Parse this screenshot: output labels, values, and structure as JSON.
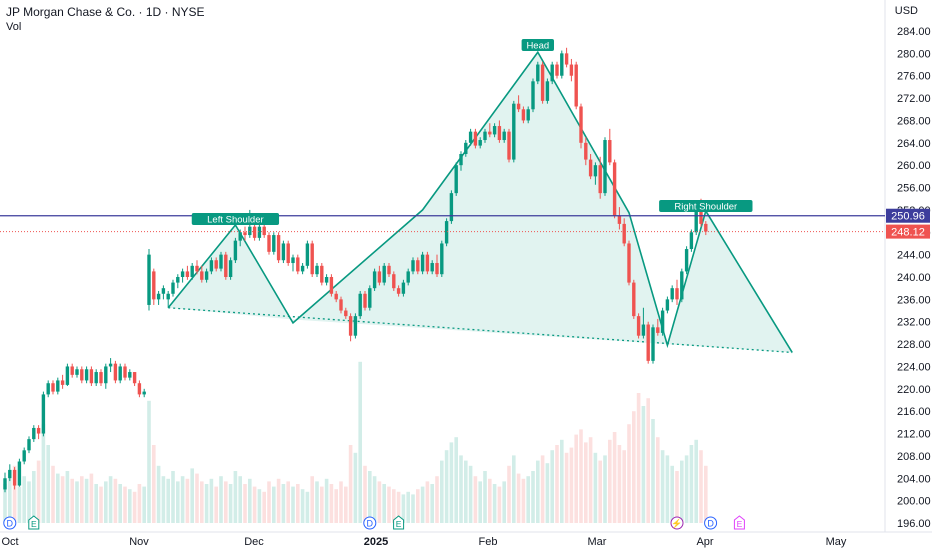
{
  "header": {
    "title": "JP Morgan Chase & Co. · 1D · NYSE",
    "volume_label": "Vol",
    "currency": "USD"
  },
  "colors": {
    "up": "#089981",
    "down": "#ef5350",
    "pattern": "#089981",
    "pattern_fill": "rgba(8,153,129,0.12)",
    "resistance": "#3d3d9c",
    "last_price_line": "#ef5350"
  },
  "chart_data": {
    "type": "candlestick",
    "title": "JP Morgan Chase & Co. · 1D · NYSE",
    "ylim": [
      194,
      288
    ],
    "y_ticks": [
      196,
      200,
      204,
      208,
      212,
      216,
      220,
      224,
      228,
      232,
      236,
      240,
      244,
      248,
      252,
      256,
      260,
      264,
      268,
      272,
      276,
      280,
      284
    ],
    "x_ticks": [
      "Oct",
      "Nov",
      "Dec",
      "2025",
      "Feb",
      "Mar",
      "Apr",
      "May"
    ],
    "price_labels": {
      "resistance": "250.96",
      "last": "248.12"
    },
    "levels": {
      "resistance": 250.96,
      "last": 248.12
    },
    "pattern": {
      "labels": {
        "left_shoulder": "Left Shoulder",
        "head": "Head",
        "right_shoulder": "Right Shoulder"
      },
      "points": [
        [
          34,
          234.5
        ],
        [
          48,
          249.3
        ],
        [
          60,
          231.8
        ],
        [
          87,
          252
        ],
        [
          111,
          280.2
        ],
        [
          130,
          251.5
        ],
        [
          138,
          227.8
        ],
        [
          146,
          251.8
        ],
        [
          164,
          226.5
        ],
        [
          60,
          232.4
        ],
        [
          34,
          234.5
        ]
      ],
      "neckline": [
        [
          34,
          234.5
        ],
        [
          164,
          226.5
        ]
      ]
    },
    "event_markers": [
      {
        "i": 1,
        "label": "D",
        "type": "dividend"
      },
      {
        "i": 6,
        "label": "E",
        "type": "earnings"
      },
      {
        "i": 76,
        "label": "D",
        "type": "dividend"
      },
      {
        "i": 82,
        "label": "E",
        "type": "earnings"
      },
      {
        "i": 140,
        "label": "⚡",
        "type": "split"
      },
      {
        "i": 147,
        "label": "D",
        "type": "dividend"
      },
      {
        "i": 153,
        "label": "E",
        "type": "earnings-upcoming"
      }
    ],
    "candles": [
      [
        202.0,
        205.0,
        201.5,
        204.0,
        0.15
      ],
      [
        204.0,
        206.5,
        203.5,
        205.5,
        0.17
      ],
      [
        205.5,
        206.0,
        202.0,
        202.7,
        0.22
      ],
      [
        202.7,
        207.5,
        202.5,
        207.0,
        0.14
      ],
      [
        207.0,
        209.5,
        206.5,
        209.0,
        0.18
      ],
      [
        209.0,
        211.5,
        208.5,
        211.0,
        0.16
      ],
      [
        211.0,
        213.5,
        210.5,
        213.0,
        0.2
      ],
      [
        213.0,
        213.5,
        211.0,
        212.0,
        0.24
      ],
      [
        212.0,
        219.5,
        211.5,
        219.0,
        0.38
      ],
      [
        219.0,
        221.5,
        218.5,
        221.0,
        0.3
      ],
      [
        221.0,
        221.5,
        219.0,
        219.5,
        0.22
      ],
      [
        219.5,
        222.0,
        219.0,
        221.5,
        0.19
      ],
      [
        221.5,
        222.5,
        220.0,
        220.7,
        0.18
      ],
      [
        220.7,
        224.5,
        220.5,
        224.0,
        0.2
      ],
      [
        224.0,
        224.5,
        222.0,
        222.5,
        0.17
      ],
      [
        222.5,
        224.0,
        222.0,
        223.5,
        0.16
      ],
      [
        223.5,
        224.0,
        221.0,
        221.5,
        0.18
      ],
      [
        221.5,
        224.0,
        221.0,
        223.5,
        0.17
      ],
      [
        223.5,
        224.0,
        220.5,
        221.0,
        0.19
      ],
      [
        221.0,
        223.5,
        220.5,
        223.0,
        0.15
      ],
      [
        223.0,
        223.5,
        220.5,
        221.0,
        0.14
      ],
      [
        221.0,
        224.5,
        220.0,
        224.0,
        0.16
      ],
      [
        224.0,
        225.5,
        223.0,
        224.5,
        0.18
      ],
      [
        224.5,
        225.0,
        221.0,
        221.5,
        0.17
      ],
      [
        221.5,
        224.5,
        221.0,
        224.0,
        0.15
      ],
      [
        224.0,
        224.5,
        221.5,
        222.0,
        0.14
      ],
      [
        222.0,
        223.5,
        221.5,
        223.0,
        0.13
      ],
      [
        223.0,
        223.0,
        220.5,
        221.0,
        0.12
      ],
      [
        221.0,
        221.5,
        218.5,
        219.0,
        0.15
      ],
      [
        219.0,
        220.0,
        218.5,
        219.5,
        0.14
      ],
      [
        235.0,
        245.0,
        234.0,
        244.0,
        0.47
      ],
      [
        241.0,
        241.5,
        235.0,
        236.0,
        0.3
      ],
      [
        236.0,
        237.5,
        235.0,
        237.0,
        0.22
      ],
      [
        237.0,
        238.5,
        236.0,
        238.0,
        0.18
      ],
      [
        236.0,
        237.5,
        234.5,
        237.0,
        0.17
      ],
      [
        237.0,
        239.5,
        236.5,
        239.0,
        0.2
      ],
      [
        239.0,
        240.5,
        238.0,
        240.0,
        0.16
      ],
      [
        240.0,
        241.5,
        239.0,
        241.0,
        0.18
      ],
      [
        241.0,
        242.0,
        239.5,
        240.0,
        0.17
      ],
      [
        240.0,
        242.5,
        239.5,
        242.0,
        0.21
      ],
      [
        242.0,
        243.0,
        240.5,
        241.0,
        0.19
      ],
      [
        241.0,
        242.0,
        239.0,
        239.5,
        0.16
      ],
      [
        239.5,
        241.5,
        239.0,
        241.0,
        0.15
      ],
      [
        241.0,
        243.5,
        240.5,
        243.0,
        0.17
      ],
      [
        243.0,
        243.5,
        241.0,
        241.5,
        0.14
      ],
      [
        241.5,
        244.5,
        241.0,
        244.0,
        0.18
      ],
      [
        244.0,
        244.5,
        239.5,
        240.0,
        0.16
      ],
      [
        240.0,
        243.5,
        239.5,
        243.0,
        0.15
      ],
      [
        243.0,
        247.0,
        242.5,
        246.5,
        0.2
      ],
      [
        246.5,
        248.5,
        245.5,
        248.0,
        0.18
      ],
      [
        248.0,
        249.0,
        246.5,
        247.5,
        0.15
      ],
      [
        247.5,
        252.0,
        247.0,
        249.0,
        0.17
      ],
      [
        249.0,
        249.5,
        246.5,
        247.0,
        0.14
      ],
      [
        247.0,
        249.5,
        246.5,
        249.0,
        0.13
      ],
      [
        249.0,
        249.5,
        247.0,
        247.5,
        0.12
      ],
      [
        247.5,
        248.0,
        244.0,
        244.5,
        0.16
      ],
      [
        244.5,
        248.0,
        244.0,
        247.5,
        0.14
      ],
      [
        247.5,
        248.0,
        242.5,
        243.0,
        0.17
      ],
      [
        243.0,
        246.5,
        242.5,
        246.0,
        0.15
      ],
      [
        246.0,
        246.5,
        242.0,
        242.5,
        0.16
      ],
      [
        242.5,
        244.0,
        241.0,
        243.5,
        0.14
      ],
      [
        243.5,
        244.0,
        240.5,
        241.0,
        0.15
      ],
      [
        241.0,
        242.5,
        240.5,
        242.0,
        0.13
      ],
      [
        242.0,
        246.5,
        241.5,
        246.0,
        0.12
      ],
      [
        246.0,
        246.5,
        240.0,
        240.5,
        0.18
      ],
      [
        240.5,
        242.5,
        240.0,
        242.0,
        0.16
      ],
      [
        242.0,
        242.5,
        238.5,
        239.0,
        0.14
      ],
      [
        239.0,
        240.5,
        238.5,
        240.0,
        0.17
      ],
      [
        240.0,
        240.5,
        236.5,
        237.0,
        0.15
      ],
      [
        237.0,
        237.5,
        235.5,
        236.0,
        0.13
      ],
      [
        236.0,
        236.5,
        233.5,
        234.0,
        0.16
      ],
      [
        234.0,
        234.5,
        232.5,
        233.0,
        0.14
      ],
      [
        233.0,
        233.5,
        228.5,
        229.5,
        0.3
      ],
      [
        229.5,
        233.5,
        229.0,
        233.0,
        0.27
      ],
      [
        233.0,
        237.5,
        232.5,
        237.0,
        0.62
      ],
      [
        237.0,
        237.5,
        234.0,
        234.5,
        0.22
      ],
      [
        234.5,
        238.5,
        234.0,
        238.0,
        0.2
      ],
      [
        238.0,
        241.5,
        237.5,
        241.0,
        0.18
      ],
      [
        241.0,
        242.0,
        238.5,
        239.0,
        0.16
      ],
      [
        239.0,
        242.5,
        238.5,
        242.0,
        0.15
      ],
      [
        242.0,
        242.5,
        240.0,
        240.5,
        0.14
      ],
      [
        240.5,
        241.0,
        237.5,
        238.0,
        0.13
      ],
      [
        238.0,
        238.5,
        236.5,
        237.0,
        0.12
      ],
      [
        237.0,
        239.5,
        236.5,
        239.0,
        0.11
      ],
      [
        239.0,
        241.5,
        238.5,
        241.0,
        0.12
      ],
      [
        241.0,
        243.5,
        240.5,
        243.0,
        0.11
      ],
      [
        243.0,
        243.5,
        240.5,
        241.0,
        0.13
      ],
      [
        241.0,
        244.5,
        240.5,
        244.0,
        0.14
      ],
      [
        244.0,
        244.5,
        240.5,
        241.0,
        0.16
      ],
      [
        241.0,
        243.0,
        240.5,
        242.5,
        0.15
      ],
      [
        242.5,
        244.0,
        240.0,
        240.5,
        0.18
      ],
      [
        240.5,
        246.5,
        240.0,
        246.0,
        0.24
      ],
      [
        246.0,
        250.5,
        245.5,
        250.0,
        0.28
      ],
      [
        250.0,
        255.5,
        249.5,
        255.0,
        0.31
      ],
      [
        255.0,
        260.5,
        254.5,
        260.0,
        0.33
      ],
      [
        260.0,
        262.5,
        259.0,
        262.0,
        0.26
      ],
      [
        262.0,
        264.5,
        261.5,
        264.0,
        0.24
      ],
      [
        264.0,
        266.5,
        263.5,
        266.0,
        0.22
      ],
      [
        266.0,
        266.5,
        263.0,
        263.5,
        0.18
      ],
      [
        263.5,
        265.0,
        263.0,
        264.5,
        0.16
      ],
      [
        264.5,
        266.5,
        264.0,
        266.0,
        0.2
      ],
      [
        266.0,
        267.5,
        265.0,
        265.5,
        0.17
      ],
      [
        265.5,
        267.5,
        265.0,
        267.0,
        0.15
      ],
      [
        267.0,
        268.0,
        264.0,
        264.5,
        0.14
      ],
      [
        264.5,
        266.5,
        264.0,
        266.0,
        0.16
      ],
      [
        266.0,
        266.5,
        260.5,
        261.0,
        0.22
      ],
      [
        261.0,
        271.5,
        260.5,
        271.0,
        0.26
      ],
      [
        271.0,
        272.5,
        269.5,
        270.0,
        0.19
      ],
      [
        270.0,
        270.5,
        267.5,
        268.0,
        0.17
      ],
      [
        268.0,
        270.5,
        267.5,
        270.0,
        0.18
      ],
      [
        270.0,
        275.5,
        269.5,
        275.0,
        0.2
      ],
      [
        275.0,
        278.5,
        274.5,
        278.0,
        0.24
      ],
      [
        278.0,
        278.5,
        271.0,
        271.5,
        0.26
      ],
      [
        271.5,
        275.5,
        271.0,
        275.0,
        0.23
      ],
      [
        275.0,
        278.5,
        274.5,
        278.0,
        0.28
      ],
      [
        278.0,
        278.5,
        275.5,
        276.0,
        0.3
      ],
      [
        276.0,
        280.5,
        275.5,
        280.0,
        0.32
      ],
      [
        280.0,
        281.0,
        277.5,
        278.0,
        0.27
      ],
      [
        278.0,
        279.0,
        275.0,
        276.0,
        0.29
      ],
      [
        278.0,
        278.5,
        270.0,
        270.5,
        0.34
      ],
      [
        270.5,
        271.0,
        263.0,
        264.0,
        0.36
      ],
      [
        264.0,
        265.0,
        260.0,
        261.0,
        0.31
      ],
      [
        261.0,
        262.0,
        257.5,
        258.0,
        0.33
      ],
      [
        258.0,
        260.5,
        256.5,
        260.0,
        0.27
      ],
      [
        260.0,
        261.5,
        254.0,
        255.0,
        0.24
      ],
      [
        255.0,
        265.0,
        254.5,
        264.5,
        0.26
      ],
      [
        264.5,
        266.5,
        260.0,
        260.5,
        0.32
      ],
      [
        260.5,
        261.0,
        250.5,
        251.0,
        0.35
      ],
      [
        251.0,
        252.5,
        248.5,
        249.5,
        0.3
      ],
      [
        249.5,
        250.5,
        245.5,
        246.0,
        0.28
      ],
      [
        246.0,
        246.5,
        238.5,
        239.0,
        0.38
      ],
      [
        239.0,
        239.5,
        232.5,
        233.0,
        0.43
      ],
      [
        233.0,
        233.5,
        229.0,
        229.5,
        0.5
      ],
      [
        229.5,
        234.5,
        229.0,
        231.5,
        0.45
      ],
      [
        231.5,
        232.0,
        224.5,
        225.0,
        0.48
      ],
      [
        225.0,
        231.5,
        224.5,
        231.0,
        0.4
      ],
      [
        231.0,
        232.5,
        229.5,
        230.0,
        0.33
      ],
      [
        230.0,
        234.5,
        229.5,
        234.0,
        0.28
      ],
      [
        234.0,
        236.5,
        233.5,
        236.0,
        0.26
      ],
      [
        236.0,
        238.5,
        235.5,
        238.0,
        0.22
      ],
      [
        238.0,
        239.5,
        235.0,
        236.0,
        0.2
      ],
      [
        236.0,
        241.5,
        235.5,
        241.0,
        0.24
      ],
      [
        241.0,
        245.5,
        240.5,
        245.0,
        0.26
      ],
      [
        245.0,
        248.5,
        244.5,
        248.0,
        0.3
      ],
      [
        248.0,
        252.5,
        247.5,
        252.0,
        0.32
      ],
      [
        252.0,
        254.0,
        249.0,
        249.5,
        0.28
      ],
      [
        249.5,
        250.0,
        247.5,
        248.12,
        0.22
      ]
    ]
  }
}
